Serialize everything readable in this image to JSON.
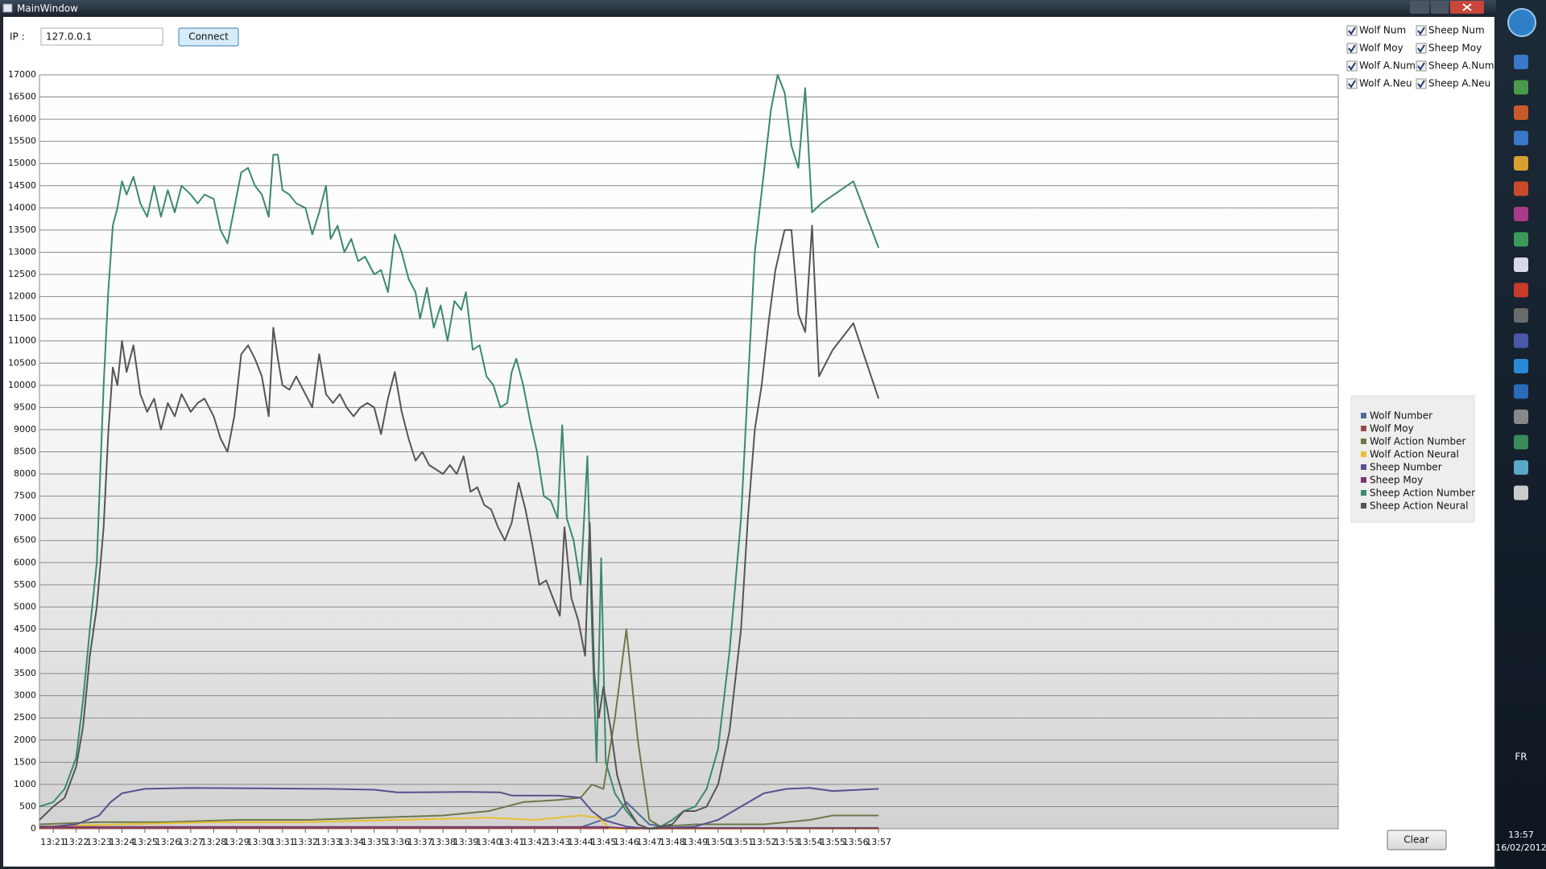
{
  "window": {
    "title": "MainWindow"
  },
  "toolbar": {
    "ip_label": "IP :",
    "ip_value": "127.0.0.1",
    "connect": "Connect"
  },
  "checkboxes": [
    {
      "label": "Wolf Num",
      "checked": true
    },
    {
      "label": "Sheep Num",
      "checked": true
    },
    {
      "label": "Wolf Moy",
      "checked": true
    },
    {
      "label": "Sheep Moy",
      "checked": true
    },
    {
      "label": "Wolf A.Num",
      "checked": true
    },
    {
      "label": "Sheep A.Num",
      "checked": true
    },
    {
      "label": "Wolf A.Neu",
      "checked": true
    },
    {
      "label": "Sheep A.Neu",
      "checked": true
    }
  ],
  "clear": "Clear",
  "taskbar": {
    "lang": "FR",
    "time": "13:57",
    "date": "16/02/2012"
  },
  "chart_data": {
    "type": "line",
    "xlim": [
      800.4,
      857.05
    ],
    "ylim": [
      0,
      17000
    ],
    "xticks": [
      {
        "value": 801,
        "label": "13:21"
      },
      {
        "value": 802,
        "label": "13:22"
      },
      {
        "value": 803,
        "label": "13:23"
      },
      {
        "value": 804,
        "label": "13:24"
      },
      {
        "value": 805,
        "label": "13:25"
      },
      {
        "value": 806,
        "label": "13:26"
      },
      {
        "value": 807,
        "label": "13:27"
      },
      {
        "value": 808,
        "label": "13:28"
      },
      {
        "value": 809,
        "label": "13:29"
      },
      {
        "value": 810,
        "label": "13:30"
      },
      {
        "value": 811,
        "label": "13:31"
      },
      {
        "value": 812,
        "label": "13:32"
      },
      {
        "value": 813,
        "label": "13:33"
      },
      {
        "value": 814,
        "label": "13:34"
      },
      {
        "value": 815,
        "label": "13:35"
      },
      {
        "value": 816,
        "label": "13:36"
      },
      {
        "value": 817,
        "label": "13:37"
      },
      {
        "value": 818,
        "label": "13:38"
      },
      {
        "value": 819,
        "label": "13:39"
      },
      {
        "value": 820,
        "label": "13:40"
      },
      {
        "value": 821,
        "label": "13:41"
      },
      {
        "value": 822,
        "label": "13:42"
      },
      {
        "value": 823,
        "label": "13:43"
      },
      {
        "value": 824,
        "label": "13:44"
      },
      {
        "value": 825,
        "label": "13:45"
      },
      {
        "value": 826,
        "label": "13:46"
      },
      {
        "value": 827,
        "label": "13:47"
      },
      {
        "value": 828,
        "label": "13:48"
      },
      {
        "value": 829,
        "label": "13:49"
      },
      {
        "value": 830,
        "label": "13:50"
      },
      {
        "value": 831,
        "label": "13:51"
      },
      {
        "value": 832,
        "label": "13:52"
      },
      {
        "value": 833,
        "label": "13:53"
      },
      {
        "value": 834,
        "label": "13:54"
      },
      {
        "value": 835,
        "label": "13:55"
      },
      {
        "value": 836,
        "label": "13:56"
      },
      {
        "value": 837,
        "label": "13:57"
      }
    ],
    "yticks": [
      0,
      500,
      1000,
      1500,
      2000,
      2500,
      3000,
      3500,
      4000,
      4500,
      5000,
      5500,
      6000,
      6500,
      7000,
      7500,
      8000,
      8500,
      9000,
      9500,
      10000,
      10500,
      11000,
      11500,
      12000,
      12500,
      13000,
      13500,
      14000,
      14500,
      15000,
      15500,
      16000,
      16500,
      17000
    ],
    "grid": true,
    "series": [
      {
        "name": "Wolf Number",
        "color": "#4f6d9a",
        "x": [
          800.4,
          824,
          825.5,
          826,
          827,
          828,
          837
        ],
        "values": [
          20,
          30,
          300,
          600,
          100,
          20,
          20
        ]
      },
      {
        "name": "Wolf Moy",
        "color": "#9a4a4a",
        "x": [
          800.4,
          837
        ],
        "values": [
          10,
          10
        ]
      },
      {
        "name": "Wolf Action Number",
        "color": "#6b7a4a",
        "x": [
          800.4,
          803,
          806,
          809,
          812,
          815,
          818,
          820,
          821.5,
          823,
          824,
          824.5,
          825,
          825.5,
          826,
          826.5,
          827,
          827.5,
          829,
          832,
          834,
          835,
          837
        ],
        "values": [
          100,
          150,
          150,
          200,
          200,
          250,
          300,
          400,
          600,
          650,
          700,
          1000,
          900,
          2500,
          4500,
          2000,
          200,
          50,
          100,
          100,
          200,
          300,
          300
        ]
      },
      {
        "name": "Wolf Action Neural",
        "color": "#e8c030",
        "x": [
          800.4,
          804,
          808,
          812,
          816,
          820,
          822,
          823,
          824,
          824.8,
          825.3,
          827,
          837
        ],
        "values": [
          50,
          100,
          150,
          150,
          200,
          250,
          200,
          250,
          300,
          250,
          0,
          0,
          0
        ]
      },
      {
        "name": "Sheep Number",
        "color": "#5a4e8e",
        "x": [
          800.4,
          801,
          802,
          803,
          803.5,
          804,
          805,
          807,
          810,
          813,
          815,
          816,
          819,
          820.5,
          821,
          823,
          824,
          824.5,
          825,
          826,
          827,
          829,
          830,
          831,
          832,
          833,
          834,
          835,
          837
        ],
        "values": [
          50,
          50,
          100,
          300,
          600,
          800,
          900,
          920,
          910,
          900,
          880,
          820,
          830,
          820,
          750,
          750,
          700,
          400,
          200,
          50,
          0,
          50,
          200,
          500,
          800,
          900,
          920,
          850,
          900
        ]
      },
      {
        "name": "Sheep Moy",
        "color": "#7a3a6a",
        "x": [
          800.4,
          825,
          826,
          837
        ],
        "values": [
          40,
          40,
          10,
          10
        ]
      },
      {
        "name": "Sheep Action Number",
        "color": "#3a8a6a",
        "x": [
          800.4,
          801,
          801.5,
          802,
          802.3,
          802.6,
          802.9,
          803.2,
          803.4,
          803.6,
          803.8,
          804,
          804.2,
          804.5,
          804.8,
          805.1,
          805.4,
          805.7,
          806,
          806.3,
          806.6,
          807,
          807.3,
          807.6,
          808,
          808.3,
          808.6,
          808.9,
          809.2,
          809.5,
          809.8,
          810.1,
          810.4,
          810.6,
          810.8,
          811,
          811.3,
          811.6,
          812,
          812.3,
          812.6,
          812.9,
          813.1,
          813.4,
          813.7,
          814,
          814.3,
          814.6,
          815,
          815.3,
          815.6,
          815.9,
          816.2,
          816.5,
          816.8,
          817,
          817.3,
          817.6,
          817.9,
          818.2,
          818.5,
          818.8,
          819,
          819.3,
          819.6,
          819.9,
          820.2,
          820.5,
          820.8,
          821,
          821.2,
          821.5,
          821.8,
          822.1,
          822.4,
          822.7,
          823,
          823.2,
          823.4,
          823.7,
          824,
          824.3,
          824.5,
          824.7,
          824.9,
          825.1,
          825.5,
          826,
          826.5,
          827,
          827.5,
          828,
          828.5,
          829,
          829.5,
          830,
          830.5,
          831,
          831.3,
          831.6,
          832,
          832.3,
          832.6,
          832.9,
          833.2,
          833.5,
          833.8,
          834.1,
          834.5,
          835.9,
          837
        ],
        "values": [
          500,
          600,
          900,
          1600,
          2900,
          4500,
          6000,
          10000,
          12100,
          13600,
          14000,
          14600,
          14300,
          14700,
          14100,
          13800,
          14500,
          13800,
          14400,
          13900,
          14500,
          14300,
          14100,
          14300,
          14200,
          13500,
          13200,
          14000,
          14800,
          14900,
          14500,
          14300,
          13800,
          15200,
          15200,
          14400,
          14300,
          14100,
          14000,
          13400,
          13900,
          14500,
          13300,
          13600,
          13000,
          13300,
          12800,
          12900,
          12500,
          12600,
          12100,
          13400,
          13000,
          12400,
          12100,
          11500,
          12200,
          11300,
          11800,
          11000,
          11900,
          11700,
          12100,
          10800,
          10900,
          10200,
          10000,
          9500,
          9600,
          10300,
          10600,
          10000,
          9200,
          8500,
          7500,
          7400,
          7000,
          9100,
          7000,
          6500,
          5500,
          8400,
          4500,
          1500,
          6100,
          1500,
          800,
          400,
          100,
          0,
          50,
          200,
          400,
          500,
          900,
          1800,
          4000,
          7000,
          10000,
          13000,
          14800,
          16200,
          17000,
          16600,
          15400,
          14900,
          16700,
          13900,
          14100,
          14600,
          13100
        ]
      },
      {
        "name": "Sheep Action Neural",
        "color": "#555555",
        "x": [
          800.4,
          801,
          801.5,
          802,
          802.3,
          802.6,
          802.9,
          803.2,
          803.4,
          803.6,
          803.8,
          804,
          804.2,
          804.5,
          804.8,
          805.1,
          805.4,
          805.7,
          806,
          806.3,
          806.6,
          807,
          807.3,
          807.6,
          808,
          808.3,
          808.6,
          808.9,
          809.2,
          809.5,
          809.8,
          810.1,
          810.4,
          810.6,
          810.8,
          811,
          811.3,
          811.6,
          812,
          812.3,
          812.6,
          812.9,
          813.2,
          813.5,
          813.8,
          814.1,
          814.4,
          814.7,
          815,
          815.3,
          815.6,
          815.9,
          816.2,
          816.5,
          816.8,
          817.1,
          817.4,
          817.7,
          818,
          818.3,
          818.6,
          818.9,
          819.2,
          819.5,
          819.8,
          820.1,
          820.4,
          820.7,
          821,
          821.3,
          821.6,
          821.9,
          822.2,
          822.5,
          822.8,
          823.1,
          823.3,
          823.6,
          823.9,
          824.2,
          824.4,
          824.6,
          824.8,
          825,
          825.3,
          825.6,
          826,
          826.5,
          827,
          828,
          828.5,
          829,
          829.5,
          830,
          830.5,
          831,
          831.3,
          831.6,
          831.9,
          832.2,
          832.5,
          832.9,
          833.2,
          833.5,
          833.8,
          834.1,
          834.4,
          835,
          835.9,
          837
        ],
        "values": [
          200,
          500,
          700,
          1400,
          2300,
          3900,
          5000,
          6800,
          8900,
          10400,
          10000,
          11000,
          10300,
          10900,
          9800,
          9400,
          9700,
          9000,
          9600,
          9300,
          9800,
          9400,
          9600,
          9700,
          9300,
          8800,
          8500,
          9300,
          10700,
          10900,
          10600,
          10200,
          9300,
          11300,
          10600,
          10000,
          9900,
          10200,
          9800,
          9500,
          10700,
          9800,
          9600,
          9800,
          9500,
          9300,
          9500,
          9600,
          9500,
          8900,
          9700,
          10300,
          9400,
          8800,
          8300,
          8500,
          8200,
          8100,
          8000,
          8200,
          8000,
          8400,
          7600,
          7700,
          7300,
          7200,
          6800,
          6500,
          6900,
          7800,
          7200,
          6400,
          5500,
          5600,
          5200,
          4800,
          6800,
          5200,
          4700,
          3900,
          6900,
          3500,
          2500,
          3200,
          2300,
          1200,
          500,
          100,
          0,
          100,
          400,
          400,
          500,
          1000,
          2200,
          4500,
          7000,
          9000,
          10000,
          11400,
          12600,
          13500,
          13500,
          11600,
          11200,
          13600,
          10200,
          10800,
          11400,
          9700
        ]
      }
    ]
  }
}
